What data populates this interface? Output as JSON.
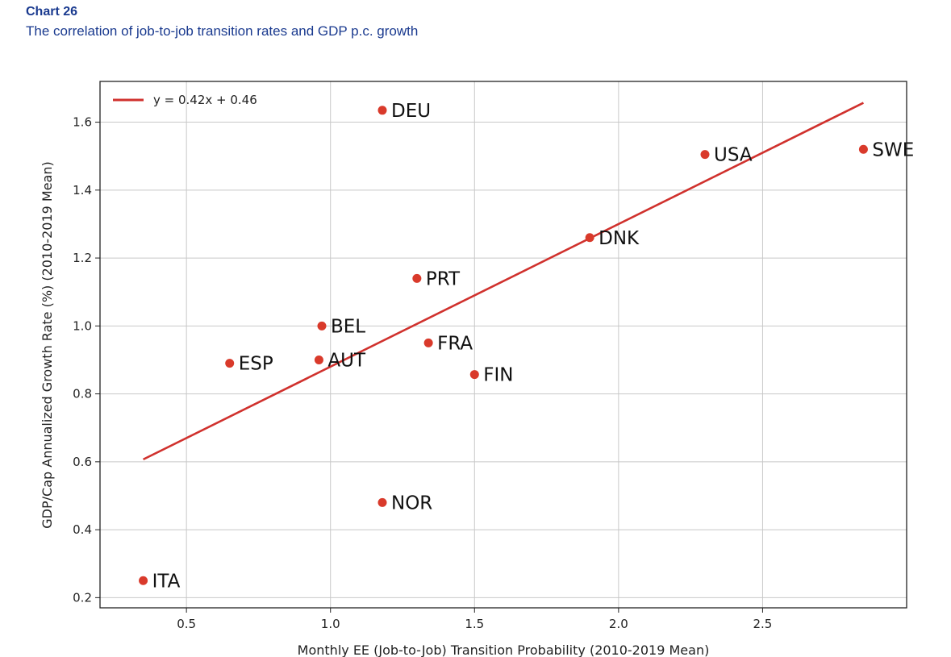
{
  "header": {
    "chart_number": "Chart 26",
    "caption": "The correlation of job-to-job transition rates and GDP p.c. growth"
  },
  "chart_data": {
    "type": "scatter",
    "title": "The correlation of job-to-job transition rates and GDP p.c. growth",
    "xlabel": "Monthly EE (Job-to-Job) Transition Probability (2010-2019 Mean)",
    "ylabel": "GDP/Cap Annualized Growth Rate (%) (2010-2019 Mean)",
    "xlim": [
      0.2,
      3.0
    ],
    "ylim": [
      0.17,
      1.72
    ],
    "xticks": [
      0.5,
      1.0,
      1.5,
      2.0,
      2.5
    ],
    "xtick_labels": [
      "0.5",
      "1.0",
      "1.5",
      "2.0",
      "2.5"
    ],
    "yticks": [
      0.2,
      0.4,
      0.6,
      0.8,
      1.0,
      1.2,
      1.4,
      1.6
    ],
    "ytick_labels": [
      "0.2",
      "0.4",
      "0.6",
      "0.8",
      "1.0",
      "1.2",
      "1.4",
      "1.6"
    ],
    "grid": true,
    "legend": "top-left",
    "point_color": "#d93a2b",
    "line_color": "#d0312d",
    "points": [
      {
        "label": "DEU",
        "x": 1.18,
        "y": 1.635
      },
      {
        "label": "SWE",
        "x": 2.85,
        "y": 1.52
      },
      {
        "label": "USA",
        "x": 2.3,
        "y": 1.505
      },
      {
        "label": "DNK",
        "x": 1.9,
        "y": 1.26
      },
      {
        "label": "PRT",
        "x": 1.3,
        "y": 1.14
      },
      {
        "label": "BEL",
        "x": 0.97,
        "y": 1.0
      },
      {
        "label": "FRA",
        "x": 1.34,
        "y": 0.95
      },
      {
        "label": "AUT",
        "x": 0.96,
        "y": 0.9
      },
      {
        "label": "ESP",
        "x": 0.65,
        "y": 0.89
      },
      {
        "label": "FIN",
        "x": 1.5,
        "y": 0.857
      },
      {
        "label": "NOR",
        "x": 1.18,
        "y": 0.48
      },
      {
        "label": "ITA",
        "x": 0.35,
        "y": 0.25
      }
    ],
    "fit_line": {
      "label": "y = 0.42x + 0.46",
      "slope": 0.42,
      "intercept": 0.46,
      "x_range": [
        0.35,
        2.85
      ]
    }
  }
}
